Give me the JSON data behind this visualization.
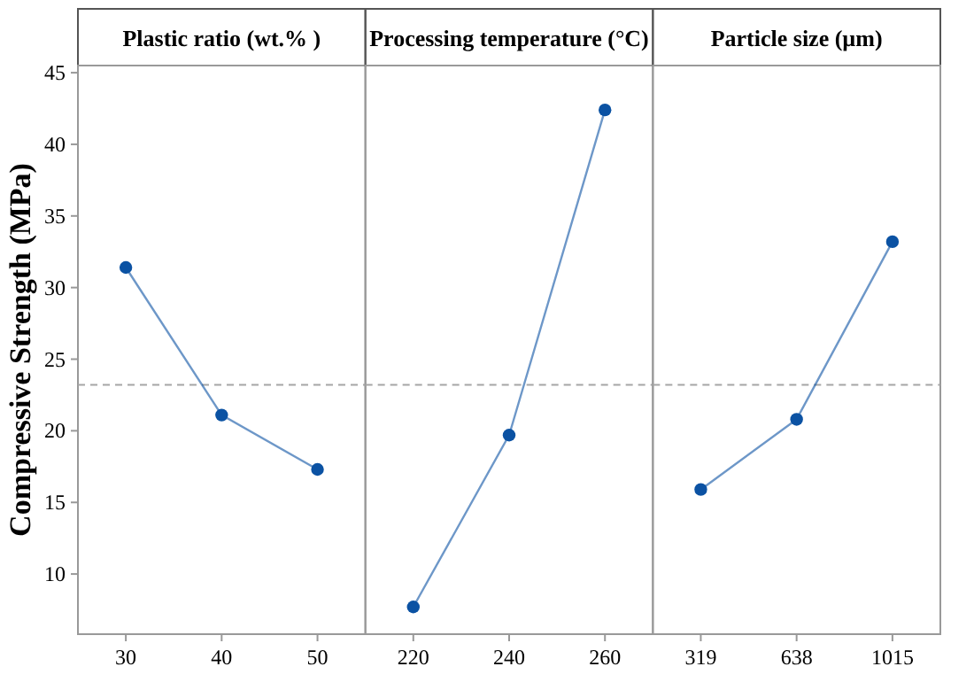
{
  "chart_data": [
    {
      "type": "line",
      "title": "Plastic ratio (wt.% )",
      "ylabel": "Compressive Strength (MPa)",
      "categories": [
        "30",
        "40",
        "50"
      ],
      "values": [
        31.4,
        21.1,
        17.3
      ],
      "color": "#0b52a3",
      "marker": "circle",
      "ylim": [
        5.8,
        45.5
      ],
      "yticks": [
        10,
        15,
        20,
        25,
        30,
        35,
        40,
        45
      ],
      "ref_lines": [
        {
          "axis": "y",
          "value": 23.2,
          "color": "#a6a6a6",
          "line_style": "dashed"
        }
      ],
      "grid": false
    },
    {
      "type": "line",
      "title": "Processing temperature (°C)",
      "categories": [
        "220",
        "240",
        "260"
      ],
      "values": [
        7.7,
        19.7,
        42.4
      ],
      "color": "#0b52a3",
      "marker": "circle",
      "ylim": [
        5.8,
        45.5
      ],
      "tick_labels": "x",
      "ref_lines": [
        {
          "axis": "y",
          "value": 23.2,
          "color": "#a6a6a6",
          "line_style": "dashed"
        }
      ],
      "grid": false
    },
    {
      "type": "line",
      "title": "Particle size (µm)",
      "categories": [
        "319",
        "638",
        "1015"
      ],
      "values": [
        15.9,
        20.8,
        33.2
      ],
      "color": "#0b52a3",
      "marker": "circle",
      "ylim": [
        5.8,
        45.5
      ],
      "tick_labels": "x",
      "ref_lines": [
        {
          "axis": "y",
          "value": 23.2,
          "color": "#a6a6a6",
          "line_style": "dashed"
        }
      ],
      "grid": false
    }
  ]
}
